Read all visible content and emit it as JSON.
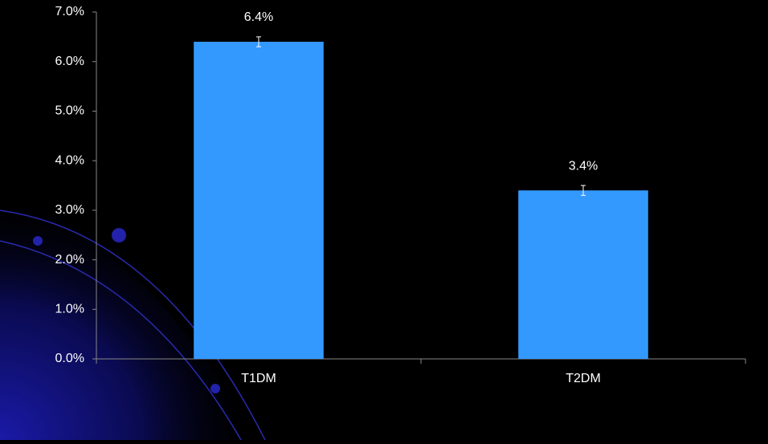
{
  "chart_data": {
    "type": "bar",
    "categories": [
      "T1DM",
      "T2DM"
    ],
    "values": [
      6.4,
      3.4
    ],
    "value_labels": [
      "6.4%",
      "3.4%"
    ],
    "errors": [
      0.1,
      0.1
    ],
    "color": "#3399ff",
    "ylim": [
      0,
      7
    ],
    "yticks": [
      {
        "value": 0,
        "label": "0.0%"
      },
      {
        "value": 1,
        "label": "1.0%"
      },
      {
        "value": 2,
        "label": "2.0%"
      },
      {
        "value": 3,
        "label": "3.0%"
      },
      {
        "value": 4,
        "label": "4.0%"
      },
      {
        "value": 5,
        "label": "5.0%"
      },
      {
        "value": 6,
        "label": "6.0%"
      },
      {
        "value": 7,
        "label": "7.0%"
      }
    ],
    "grid": false
  }
}
